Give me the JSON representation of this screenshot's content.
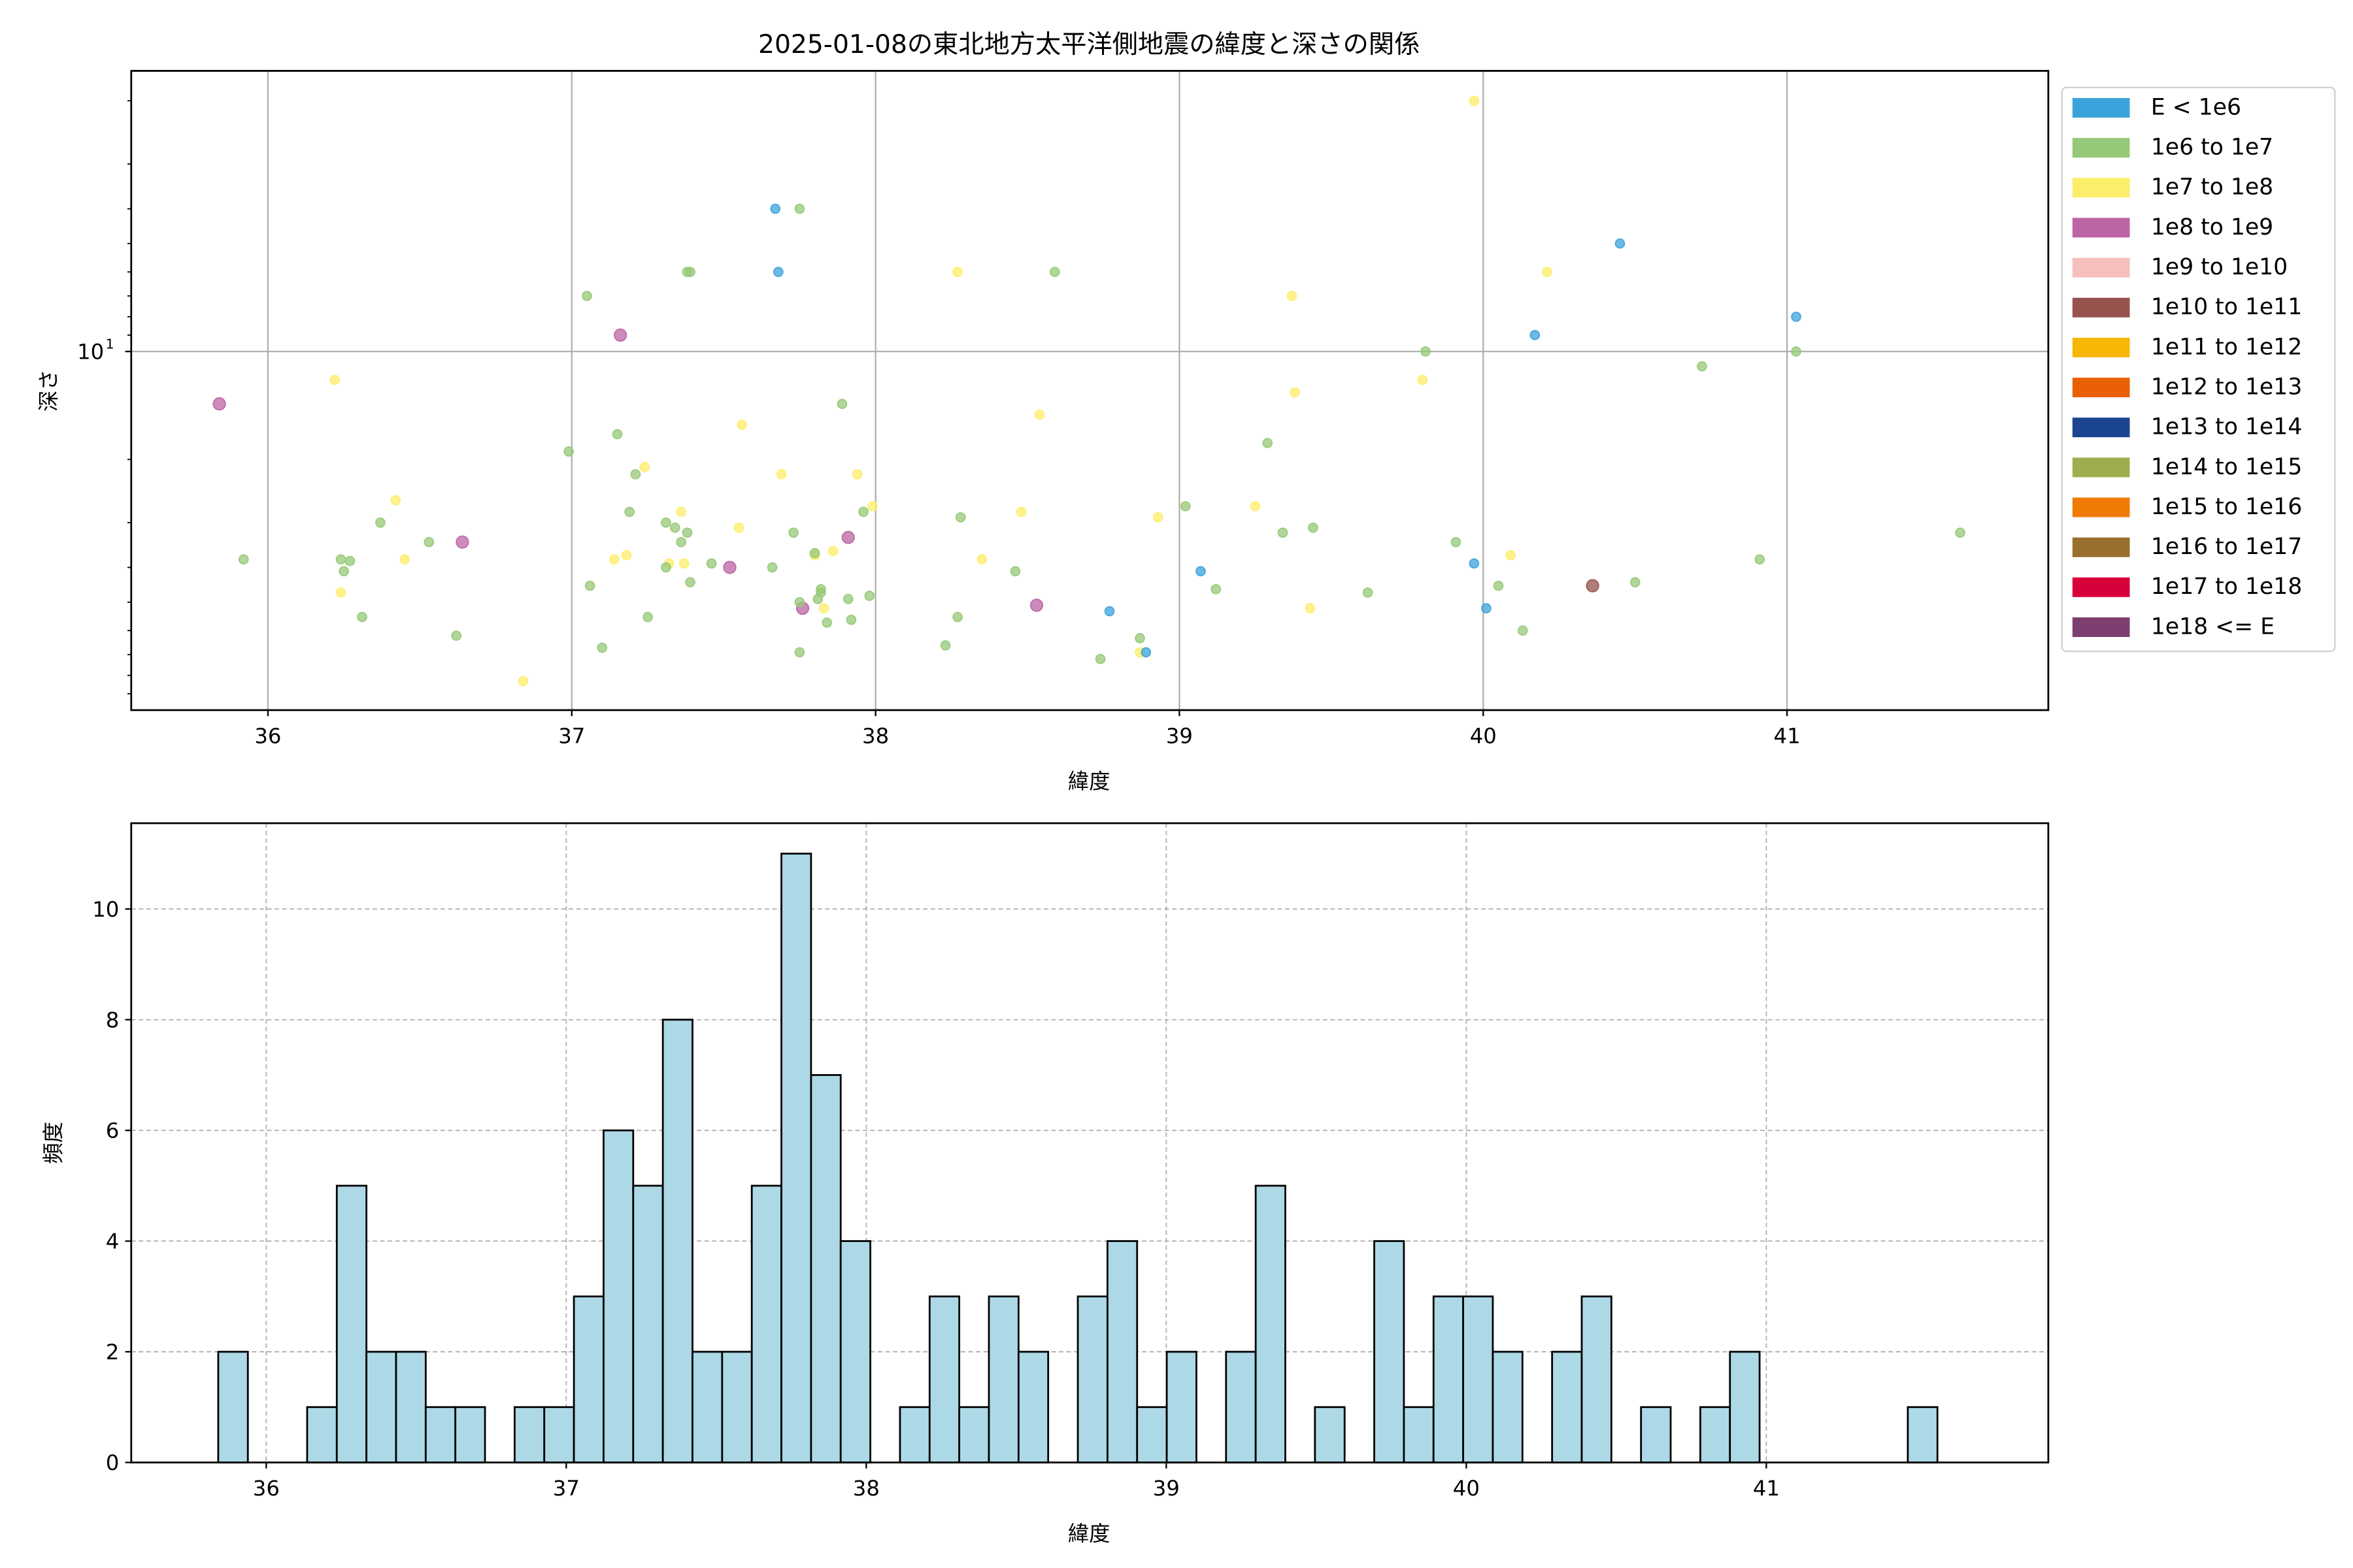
{
  "chart_data": [
    {
      "type": "scatter",
      "title": "2025-01-08の東北地方太平洋側地震の緯度と深さの関係",
      "xlabel": "緯度",
      "ylabel": "深さ",
      "xlim": [
        35.55,
        41.86
      ],
      "ylim": [
        1.65,
        100
      ],
      "yscale": "log",
      "y_inverted": true,
      "xticks": [
        36,
        37,
        38,
        39,
        40,
        41
      ],
      "yticks": [
        {
          "value": 10,
          "label": "10",
          "sup": "1"
        }
      ],
      "grid": true,
      "legend_position": "outside-right",
      "legend": [
        {
          "label": "E < 1e6",
          "color": "#3ba3db"
        },
        {
          "label": "1e6 to 1e7",
          "color": "#96c977"
        },
        {
          "label": "1e7 to 1e8",
          "color": "#fdee6a"
        },
        {
          "label": "1e8 to 1e9",
          "color": "#bc64a5"
        },
        {
          "label": "1e9 to 1e10",
          "color": "#f5c0bd"
        },
        {
          "label": "1e10 to 1e11",
          "color": "#97524d"
        },
        {
          "label": "1e11 to 1e12",
          "color": "#f8b707"
        },
        {
          "label": "1e12 to 1e13",
          "color": "#ea6105"
        },
        {
          "label": "1e13 to 1e14",
          "color": "#1b458f"
        },
        {
          "label": "1e14 to 1e15",
          "color": "#9eae4e"
        },
        {
          "label": "1e15 to 1e16",
          "color": "#ef7b05"
        },
        {
          "label": "1e16 to 1e17",
          "color": "#986f2c"
        },
        {
          "label": "1e17 to 1e18",
          "color": "#d8003a"
        },
        {
          "label": "1e18 <= E",
          "color": "#7d3f6f"
        }
      ],
      "points": [
        [
          35.84,
          14,
          3
        ],
        [
          35.92,
          38,
          1
        ],
        [
          36.22,
          12,
          2
        ],
        [
          36.24,
          38,
          1
        ],
        [
          36.25,
          41,
          1
        ],
        [
          36.24,
          47,
          2
        ],
        [
          36.27,
          38.4,
          1
        ],
        [
          36.31,
          55,
          1
        ],
        [
          36.37,
          30,
          1
        ],
        [
          36.42,
          26,
          2
        ],
        [
          36.45,
          38,
          2
        ],
        [
          36.53,
          34,
          1
        ],
        [
          36.64,
          34,
          3
        ],
        [
          36.62,
          62,
          1
        ],
        [
          36.84,
          83,
          2
        ],
        [
          36.99,
          19,
          1
        ],
        [
          37.05,
          7,
          1
        ],
        [
          37.16,
          9,
          3
        ],
        [
          37.06,
          45,
          1
        ],
        [
          37.1,
          67,
          1
        ],
        [
          37.15,
          17,
          1
        ],
        [
          37.14,
          38,
          2
        ],
        [
          37.18,
          37,
          2
        ],
        [
          37.19,
          28,
          1
        ],
        [
          37.21,
          22,
          1
        ],
        [
          37.24,
          21,
          2
        ],
        [
          37.25,
          55,
          1
        ],
        [
          37.31,
          30,
          1
        ],
        [
          37.34,
          31,
          1
        ],
        [
          37.36,
          28,
          2
        ],
        [
          37.36,
          34,
          1
        ],
        [
          37.38,
          32,
          1
        ],
        [
          37.32,
          39,
          2
        ],
        [
          37.31,
          40,
          1
        ],
        [
          37.37,
          39,
          2
        ],
        [
          37.39,
          44,
          1
        ],
        [
          37.38,
          6,
          1
        ],
        [
          37.39,
          6,
          1
        ],
        [
          37.46,
          39,
          1
        ],
        [
          37.52,
          40,
          3
        ],
        [
          37.55,
          31,
          2
        ],
        [
          37.56,
          16,
          2
        ],
        [
          37.66,
          40,
          1
        ],
        [
          37.67,
          4,
          0
        ],
        [
          37.68,
          6,
          0
        ],
        [
          37.75,
          4,
          1
        ],
        [
          37.69,
          22,
          2
        ],
        [
          37.73,
          32,
          1
        ],
        [
          37.76,
          52,
          3
        ],
        [
          37.75,
          50,
          1
        ],
        [
          37.75,
          69,
          1
        ],
        [
          37.83,
          52,
          2
        ],
        [
          37.81,
          49,
          1
        ],
        [
          37.82,
          47,
          1
        ],
        [
          37.82,
          46,
          1
        ],
        [
          37.84,
          57,
          1
        ],
        [
          37.8,
          37,
          2
        ],
        [
          37.8,
          36.5,
          1
        ],
        [
          37.86,
          36,
          2
        ],
        [
          37.89,
          14,
          1
        ],
        [
          37.91,
          33,
          3
        ],
        [
          37.91,
          49,
          1
        ],
        [
          37.92,
          56,
          1
        ],
        [
          37.94,
          22,
          2
        ],
        [
          37.96,
          28,
          1
        ],
        [
          37.98,
          48,
          1
        ],
        [
          37.99,
          27,
          2
        ],
        [
          38.27,
          6,
          2
        ],
        [
          38.59,
          6,
          1
        ],
        [
          38.28,
          29,
          1
        ],
        [
          38.27,
          55,
          1
        ],
        [
          38.23,
          66,
          1
        ],
        [
          38.35,
          38,
          2
        ],
        [
          38.46,
          41,
          1
        ],
        [
          38.48,
          28,
          2
        ],
        [
          38.54,
          15,
          2
        ],
        [
          38.53,
          51,
          3
        ],
        [
          38.77,
          53,
          0
        ],
        [
          38.74,
          72,
          1
        ],
        [
          38.87,
          63,
          1
        ],
        [
          38.87,
          69,
          2
        ],
        [
          38.89,
          69,
          0
        ],
        [
          38.93,
          29,
          2
        ],
        [
          39.02,
          27,
          1
        ],
        [
          39.07,
          41,
          0
        ],
        [
          39.12,
          46,
          1
        ],
        [
          39.25,
          27,
          2
        ],
        [
          39.29,
          18,
          1
        ],
        [
          39.34,
          32,
          1
        ],
        [
          39.37,
          7,
          2
        ],
        [
          39.38,
          13,
          2
        ],
        [
          39.44,
          31,
          1
        ],
        [
          39.43,
          52,
          2
        ],
        [
          39.62,
          47,
          1
        ],
        [
          39.81,
          10,
          1
        ],
        [
          39.8,
          12,
          2
        ],
        [
          39.91,
          34,
          1
        ],
        [
          39.97,
          39,
          0
        ],
        [
          39.97,
          2,
          2
        ],
        [
          40.01,
          52,
          0
        ],
        [
          40.05,
          45,
          1
        ],
        [
          40.09,
          37,
          2
        ],
        [
          40.13,
          60,
          1
        ],
        [
          40.17,
          9,
          0
        ],
        [
          40.21,
          6,
          2
        ],
        [
          40.36,
          45,
          5
        ],
        [
          40.5,
          44,
          1
        ],
        [
          40.45,
          5,
          0
        ],
        [
          40.72,
          11,
          1
        ],
        [
          40.91,
          38,
          1
        ],
        [
          41.03,
          8,
          0
        ],
        [
          41.03,
          10,
          1
        ],
        [
          41.57,
          32,
          1
        ]
      ],
      "point_fields": [
        "latitude",
        "depth",
        "legend_index"
      ]
    },
    {
      "type": "bar",
      "subtype": "histogram",
      "xlabel": "緯度",
      "ylabel": "頻度",
      "xlim": [
        35.55,
        41.94
      ],
      "ylim": [
        0,
        11.55
      ],
      "xticks": [
        36,
        37,
        38,
        39,
        40,
        41
      ],
      "yticks": [
        0,
        2,
        4,
        6,
        8,
        10
      ],
      "grid": true,
      "bar_color": "#add8e6",
      "edge_color": "#000000",
      "bin_start": 35.84,
      "bin_width": 0.0988,
      "counts": [
        2,
        0,
        0,
        1,
        5,
        2,
        2,
        1,
        1,
        0,
        1,
        1,
        3,
        6,
        5,
        8,
        2,
        2,
        5,
        11,
        7,
        4,
        0,
        1,
        3,
        1,
        3,
        2,
        0,
        3,
        4,
        1,
        2,
        0,
        2,
        5,
        0,
        1,
        0,
        4,
        1,
        3,
        3,
        2,
        0,
        2,
        3,
        0,
        1,
        0,
        1,
        2,
        0,
        0,
        0,
        0,
        0,
        1
      ]
    }
  ]
}
